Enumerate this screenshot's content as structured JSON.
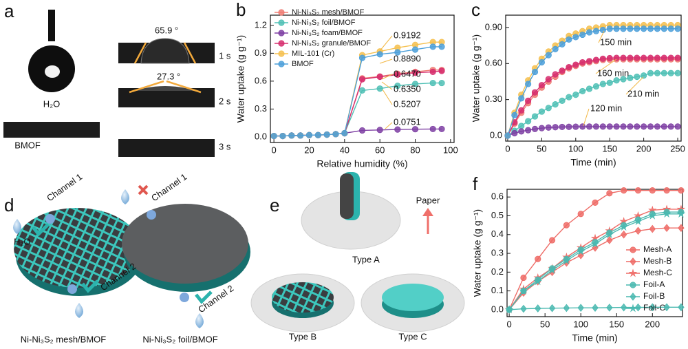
{
  "panels": {
    "a": {
      "label": "a",
      "angle_1": "65.9 °",
      "angle_2": "27.3 °",
      "time_1": "1 s",
      "time_2": "2 s",
      "time_3": "3 s",
      "drop": "H₂O",
      "film": "BMOF"
    },
    "d": {
      "label": "d",
      "water": "H₂O",
      "channel_1a": "Channel 1",
      "channel_2a": "Channel 2",
      "channel_1b": "Channel 1",
      "channel_2b": "Channel 2",
      "caption_1": "Ni-Ni₃S₂ mesh/BMOF",
      "caption_2": "Ni-Ni₃S₂ foil/BMOF"
    },
    "e": {
      "label": "e",
      "type_a": "Type A",
      "type_b": "Type B",
      "type_c": "Type C",
      "paper": "Paper"
    }
  },
  "chart_data": [
    {
      "type": "line",
      "label": "b",
      "xlabel": "Relative humidity (%)",
      "ylabel": "Water uptake (g g⁻¹)",
      "x": [
        0,
        5,
        10,
        15,
        20,
        25,
        30,
        35,
        40,
        50,
        60,
        70,
        80,
        90,
        95
      ],
      "xlim": [
        -2,
        102
      ],
      "ylim": [
        -0.06,
        1.31
      ],
      "xticks": [
        0,
        20,
        40,
        60,
        80,
        100
      ],
      "yticks": [
        {
          "value": 0,
          "label": "0.0"
        },
        0.3,
        0.6,
        0.9,
        1.2
      ],
      "legend": "upper left",
      "series": [
        {
          "name": "Ni-Ni₃S₂ mesh/BMOF",
          "color": "#ee7b72",
          "marker": "circle",
          "values": [
            0.01,
            0.01,
            0.015,
            0.015,
            0.02,
            0.02,
            0.025,
            0.03,
            0.04,
            0.63,
            0.65,
            0.68,
            0.7,
            0.72,
            0.72
          ]
        },
        {
          "name": "Ni-Ni₃S₂ foil/BMOF",
          "color": "#4fc0b5",
          "marker": "circle",
          "values": [
            0.01,
            0.01,
            0.015,
            0.015,
            0.02,
            0.02,
            0.025,
            0.03,
            0.04,
            0.5,
            0.52,
            0.55,
            0.57,
            0.58,
            0.58
          ]
        },
        {
          "name": "Ni-Ni₃S₂ foam/BMOF",
          "color": "#7e3fa3",
          "marker": "circle",
          "values": [
            0.01,
            0.01,
            0.015,
            0.015,
            0.02,
            0.02,
            0.025,
            0.03,
            0.04,
            0.07,
            0.075,
            0.08,
            0.083,
            0.085,
            0.085
          ]
        },
        {
          "name": "Ni-Ni₃S₂ granule/BMOF",
          "color": "#d62e6e",
          "marker": "circle",
          "values": [
            0.01,
            0.01,
            0.015,
            0.015,
            0.02,
            0.02,
            0.025,
            0.03,
            0.04,
            0.62,
            0.647,
            0.67,
            0.69,
            0.7,
            0.71
          ]
        },
        {
          "name": "MIL-101 (Cr)",
          "color": "#f5c04f",
          "marker": "circle",
          "values": [
            0.01,
            0.01,
            0.015,
            0.015,
            0.02,
            0.02,
            0.025,
            0.03,
            0.04,
            0.88,
            0.92,
            0.96,
            0.99,
            1.02,
            1.02
          ]
        },
        {
          "name": "BMOF",
          "color": "#4b9fd9",
          "marker": "circle",
          "values": [
            0.01,
            0.01,
            0.015,
            0.015,
            0.02,
            0.02,
            0.025,
            0.03,
            0.04,
            0.85,
            0.889,
            0.91,
            0.94,
            0.97,
            0.97
          ]
        }
      ],
      "annotations": [
        "0.9192",
        "0.8890",
        "0.6470",
        "0.6350",
        "0.5207",
        "0.0751"
      ]
    },
    {
      "type": "line",
      "label": "c",
      "xlabel": "Time (min)",
      "ylabel": "Water uptake (g g⁻¹)",
      "x": [
        0,
        10,
        20,
        30,
        40,
        50,
        60,
        70,
        80,
        90,
        100,
        110,
        120,
        130,
        140,
        150,
        160,
        170,
        180,
        190,
        200,
        210,
        220,
        230,
        240,
        250
      ],
      "xlim": [
        -3,
        255
      ],
      "ylim": [
        -0.046,
        1.003
      ],
      "xticks": [
        0,
        50,
        100,
        150,
        200,
        250
      ],
      "yticks": [
        {
          "value": 0,
          "label": "0.0"
        },
        {
          "value": 0.3,
          "label": "0.30"
        },
        {
          "value": 0.6,
          "label": "0.60"
        },
        {
          "value": 0.9,
          "label": "0.90"
        }
      ],
      "series": [
        {
          "color": "#ee7b72",
          "marker": "circle",
          "values": [
            0,
            0.1,
            0.19,
            0.27,
            0.34,
            0.4,
            0.45,
            0.49,
            0.53,
            0.56,
            0.58,
            0.6,
            0.61,
            0.62,
            0.63,
            0.633,
            0.635,
            0.635,
            0.635,
            0.635,
            0.635,
            0.635,
            0.635,
            0.635,
            0.635,
            0.635
          ]
        },
        {
          "color": "#4fc0b5",
          "marker": "circle",
          "values": [
            0,
            0.04,
            0.08,
            0.12,
            0.16,
            0.2,
            0.23,
            0.26,
            0.29,
            0.32,
            0.34,
            0.37,
            0.39,
            0.41,
            0.43,
            0.44,
            0.46,
            0.47,
            0.48,
            0.49,
            0.5,
            0.52,
            0.52,
            0.52,
            0.52,
            0.52
          ]
        },
        {
          "color": "#7e3fa3",
          "marker": "circle",
          "values": [
            0,
            0.02,
            0.035,
            0.045,
            0.055,
            0.062,
            0.067,
            0.07,
            0.072,
            0.073,
            0.074,
            0.075,
            0.075,
            0.075,
            0.075,
            0.075,
            0.075,
            0.075,
            0.075,
            0.075,
            0.075,
            0.075,
            0.075,
            0.075,
            0.075,
            0.075
          ]
        },
        {
          "color": "#d62e6e",
          "marker": "circle",
          "values": [
            0,
            0.11,
            0.21,
            0.29,
            0.36,
            0.42,
            0.47,
            0.51,
            0.54,
            0.57,
            0.59,
            0.61,
            0.62,
            0.63,
            0.64,
            0.645,
            0.647,
            0.647,
            0.647,
            0.647,
            0.647,
            0.647,
            0.647,
            0.647,
            0.647,
            0.647
          ]
        },
        {
          "color": "#f5c04f",
          "marker": "circle",
          "values": [
            0,
            0.19,
            0.34,
            0.46,
            0.56,
            0.64,
            0.7,
            0.75,
            0.79,
            0.83,
            0.85,
            0.87,
            0.89,
            0.9,
            0.91,
            0.92,
            0.92,
            0.92,
            0.92,
            0.92,
            0.92,
            0.92,
            0.92,
            0.92,
            0.92,
            0.92
          ]
        },
        {
          "color": "#4b9fd9",
          "marker": "circle",
          "values": [
            0,
            0.17,
            0.31,
            0.43,
            0.53,
            0.61,
            0.67,
            0.72,
            0.76,
            0.8,
            0.82,
            0.84,
            0.86,
            0.87,
            0.88,
            0.89,
            0.89,
            0.89,
            0.89,
            0.89,
            0.89,
            0.89,
            0.89,
            0.89,
            0.89,
            0.89
          ]
        }
      ],
      "annotations": [
        "150 min",
        "160 min",
        "210 min",
        "120 min"
      ]
    },
    {
      "type": "line",
      "label": "f",
      "xlabel": "Time (min)",
      "ylabel": "Water uptake (g g⁻¹)",
      "x": [
        0,
        20,
        40,
        60,
        80,
        100,
        120,
        140,
        160,
        180,
        200,
        220,
        240
      ],
      "xlim": [
        -3,
        242
      ],
      "ylim": [
        -0.037,
        0.641
      ],
      "xticks": [
        0,
        50,
        100,
        150,
        200
      ],
      "yticks": [
        {
          "value": 0,
          "label": "0.0"
        },
        0.1,
        0.2,
        0.3,
        0.4,
        0.5,
        0.6
      ],
      "legend": "lower right",
      "series": [
        {
          "name": "Mesh-A",
          "color": "#ee6b66",
          "marker": "circle",
          "values": [
            0,
            0.17,
            0.27,
            0.37,
            0.45,
            0.51,
            0.57,
            0.62,
            0.635,
            0.635,
            0.635,
            0.635,
            0.635
          ]
        },
        {
          "name": "Mesh-B",
          "color": "#ee6b66",
          "marker": "diamond",
          "values": [
            0,
            0.09,
            0.15,
            0.2,
            0.25,
            0.29,
            0.33,
            0.37,
            0.4,
            0.42,
            0.43,
            0.435,
            0.435
          ]
        },
        {
          "name": "Mesh-C",
          "color": "#ee6b66",
          "marker": "star",
          "values": [
            0,
            0.11,
            0.17,
            0.22,
            0.28,
            0.33,
            0.38,
            0.42,
            0.47,
            0.5,
            0.53,
            0.535,
            0.535
          ]
        },
        {
          "name": "Foil-A",
          "color": "#4ab9b0",
          "marker": "circle",
          "values": [
            0,
            0.1,
            0.16,
            0.22,
            0.27,
            0.32,
            0.36,
            0.41,
            0.45,
            0.48,
            0.51,
            0.52,
            0.52
          ]
        },
        {
          "name": "Foil-B",
          "color": "#4ab9b0",
          "marker": "diamond",
          "values": [
            0,
            0.005,
            0.007,
            0.008,
            0.009,
            0.01,
            0.01,
            0.011,
            0.012,
            0.012,
            0.013,
            0.013,
            0.013
          ]
        },
        {
          "name": "Foil-C",
          "color": "#4ab9b0",
          "marker": "star",
          "values": [
            0,
            0.1,
            0.15,
            0.21,
            0.26,
            0.31,
            0.35,
            0.4,
            0.44,
            0.47,
            0.5,
            0.51,
            0.51
          ]
        }
      ]
    }
  ]
}
